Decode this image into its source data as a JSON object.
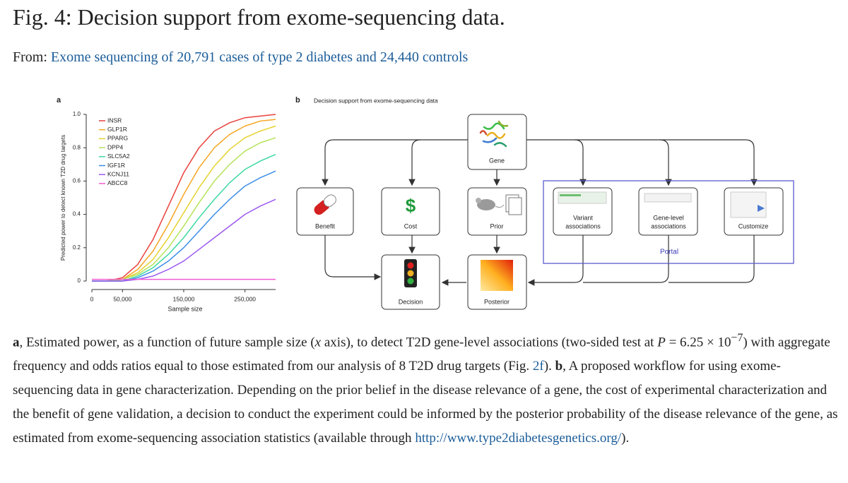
{
  "header": {
    "title": "Fig. 4: Decision support from exome-sequencing data.",
    "from_label": "From:",
    "from_link": "Exome sequencing of 20,791 cases of type 2 diabetes and 24,440 controls"
  },
  "chart_data": {
    "type": "line",
    "panel_label": "a",
    "y_label": "Predicted power to detect known T2D drug targets",
    "x_label": "Sample size",
    "x": [
      0,
      25000,
      50000,
      75000,
      100000,
      125000,
      150000,
      175000,
      200000,
      225000,
      250000,
      275000,
      300000
    ],
    "series": [
      {
        "name": "INSR",
        "color": "#e8413c",
        "values": [
          0,
          0,
          0.02,
          0.1,
          0.25,
          0.45,
          0.65,
          0.8,
          0.9,
          0.95,
          0.98,
          0.99,
          1.0
        ]
      },
      {
        "name": "GLP1R",
        "color": "#f5a623",
        "values": [
          0,
          0,
          0.01,
          0.07,
          0.18,
          0.34,
          0.52,
          0.68,
          0.8,
          0.88,
          0.93,
          0.96,
          0.97
        ]
      },
      {
        "name": "PPARG",
        "color": "#e6d22e",
        "values": [
          0,
          0,
          0.01,
          0.05,
          0.13,
          0.26,
          0.41,
          0.56,
          0.69,
          0.79,
          0.86,
          0.9,
          0.93
        ]
      },
      {
        "name": "DPP4",
        "color": "#b5e35a",
        "values": [
          0,
          0,
          0.01,
          0.04,
          0.1,
          0.2,
          0.33,
          0.47,
          0.6,
          0.7,
          0.78,
          0.83,
          0.86
        ]
      },
      {
        "name": "SLC5A2",
        "color": "#3dd8a0",
        "values": [
          0,
          0,
          0,
          0.03,
          0.08,
          0.16,
          0.26,
          0.38,
          0.49,
          0.59,
          0.67,
          0.72,
          0.76
        ]
      },
      {
        "name": "IGF1R",
        "color": "#3c8de8",
        "values": [
          0,
          0,
          0,
          0.02,
          0.06,
          0.12,
          0.2,
          0.3,
          0.4,
          0.49,
          0.57,
          0.62,
          0.66
        ]
      },
      {
        "name": "KCNJ11",
        "color": "#9b59f0",
        "values": [
          0,
          0,
          0,
          0.01,
          0.03,
          0.07,
          0.12,
          0.19,
          0.26,
          0.33,
          0.4,
          0.45,
          0.49
        ]
      },
      {
        "name": "ABCC8",
        "color": "#f05bd2",
        "values": [
          0.01,
          0.01,
          0.01,
          0.01,
          0.01,
          0.01,
          0.01,
          0.01,
          0.01,
          0.01,
          0.01,
          0.01,
          0.01
        ]
      }
    ],
    "xlim": [
      0,
      300000
    ],
    "xticks": [
      0,
      {
        "value": 50000,
        "label": "50,000"
      },
      {
        "value": 150000,
        "label": "150,000"
      },
      {
        "value": 250000,
        "label": "250,000"
      }
    ],
    "ylim": [
      0,
      1.0
    ],
    "yticks": [
      0,
      0.2,
      0.4,
      0.6,
      0.8,
      {
        "value": 1.0,
        "label": "1.0"
      }
    ],
    "grid": false,
    "legend": "upper-left"
  },
  "diagram": {
    "panel_label": "b",
    "title": "Decision support from exome-sequencing data",
    "nodes": [
      {
        "lines": [
          "Gene"
        ]
      },
      {
        "lines": [
          "Benefit"
        ]
      },
      {
        "lines": [
          "Cost"
        ],
        "icon_text": "$"
      },
      {
        "lines": [
          "Prior"
        ]
      },
      {
        "lines": [
          "Variant",
          "associations"
        ]
      },
      {
        "lines": [
          "Gene-level",
          "associations"
        ]
      },
      {
        "lines": [
          "Customize"
        ]
      },
      {
        "lines": [
          "Decision"
        ]
      },
      {
        "lines": [
          "Posterior"
        ]
      }
    ],
    "group": "Portal"
  },
  "caption": {
    "parts": [
      "a",
      ", Estimated power, as a function of future sample size (",
      "x",
      " axis), to detect T2D gene-level associations (two-sided test at ",
      "P",
      " = 6.25 × 10",
      "−7",
      ") with aggregate frequency and odds ratios equal to those estimated from our analysis of 8 T2D drug targets (Fig. ",
      "2f",
      "). ",
      "b",
      ", A proposed workflow for using exome-sequencing data in gene characterization. Depending on the prior belief in the disease relevance of a gene, the cost of experimental characterization and the benefit of gene validation, a decision to conduct the experiment could be informed by the posterior probability of the disease relevance of the gene, as estimated from exome-sequencing association statistics (available through ",
      "http://www.type2diabetesgenetics.org/",
      ")."
    ]
  }
}
